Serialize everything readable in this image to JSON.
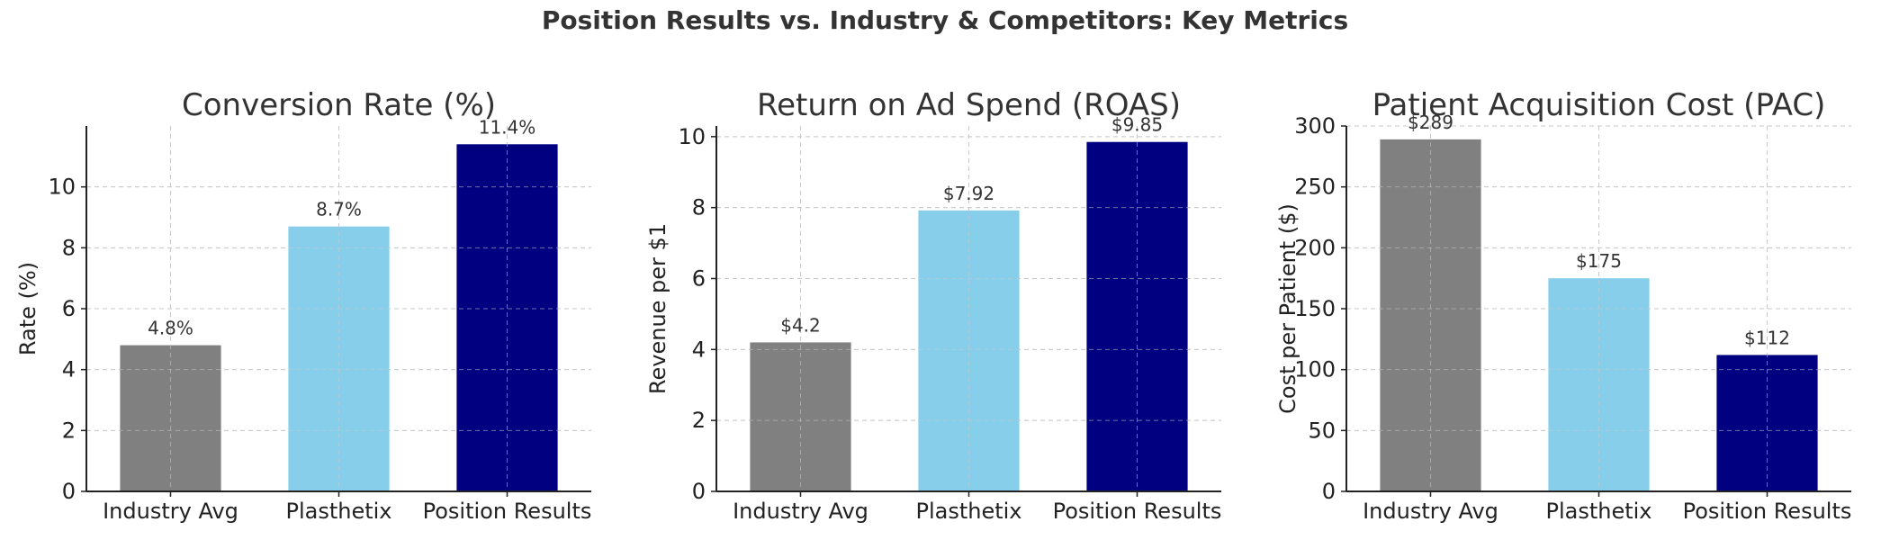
{
  "figure_title": "Position Results vs. Industry & Competitors: Key Metrics",
  "colors": {
    "Industry Avg": "#808080",
    "Plasthetix": "#87ceeb",
    "Position Results": "#000080",
    "grid": "#c8c8c8",
    "text": "#333333"
  },
  "chart_data": [
    {
      "type": "bar",
      "title": "Conversion Rate (%)",
      "xlabel": "",
      "ylabel": "Rate (%)",
      "categories": [
        "Industry Avg",
        "Plasthetix",
        "Position Results"
      ],
      "values": [
        4.8,
        8.7,
        11.4
      ],
      "value_labels": [
        "4.8%",
        "8.7%",
        "11.4%"
      ],
      "ylim": [
        0,
        12
      ],
      "yticks": [
        0,
        2,
        4,
        6,
        8,
        10
      ],
      "grid": true
    },
    {
      "type": "bar",
      "title": "Return on Ad Spend (ROAS)",
      "xlabel": "",
      "ylabel": "Revenue per $1",
      "categories": [
        "Industry Avg",
        "Plasthetix",
        "Position Results"
      ],
      "values": [
        4.2,
        7.92,
        9.85
      ],
      "value_labels": [
        "$4.2",
        "$7.92",
        "$9.85"
      ],
      "ylim": [
        0,
        10.3
      ],
      "yticks": [
        0,
        2,
        4,
        6,
        8,
        10
      ],
      "grid": true
    },
    {
      "type": "bar",
      "title": "Patient Acquisition Cost (PAC)",
      "xlabel": "",
      "ylabel": "Cost per Patient ($)",
      "categories": [
        "Industry Avg",
        "Plasthetix",
        "Position Results"
      ],
      "values": [
        289,
        175,
        112
      ],
      "value_labels": [
        "$289",
        "$175",
        "$112"
      ],
      "ylim": [
        0,
        300
      ],
      "yticks": [
        0,
        50,
        100,
        150,
        200,
        250,
        300
      ],
      "grid": true
    }
  ]
}
